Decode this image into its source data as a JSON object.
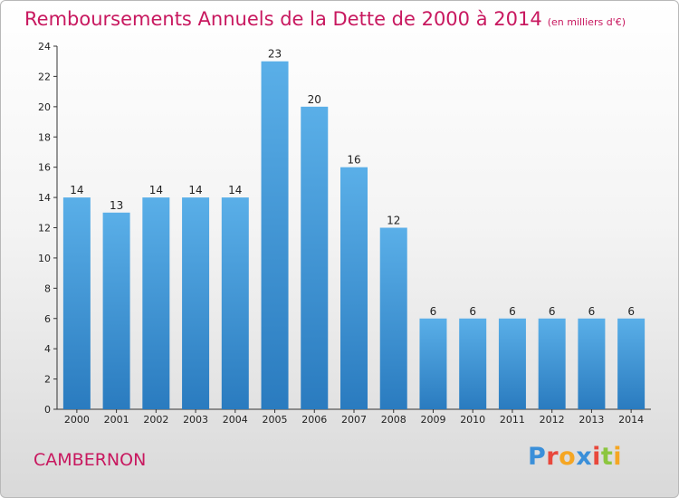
{
  "chart_data": {
    "type": "bar",
    "title": "Remboursements Annuels de la Dette de 2000 à 2014",
    "subtitle": "(en milliers d'€)",
    "categories": [
      "2000",
      "2001",
      "2002",
      "2003",
      "2004",
      "2005",
      "2006",
      "2007",
      "2008",
      "2009",
      "2010",
      "2011",
      "2012",
      "2013",
      "2014"
    ],
    "values": [
      14,
      13,
      14,
      14,
      14,
      23,
      20,
      16,
      12,
      6,
      6,
      6,
      6,
      6,
      6
    ],
    "ylim": [
      0,
      24
    ],
    "yticks": [
      0,
      2,
      4,
      6,
      8,
      10,
      12,
      14,
      16,
      18,
      20,
      22,
      24
    ],
    "xlabel": "",
    "ylabel": "",
    "grid": false,
    "colors": {
      "bar_top": "#5aafe8",
      "bar_bottom": "#2a7bbf",
      "title": "#c8185f"
    }
  },
  "commune_name": "CAMBERNON",
  "logo": {
    "letters": [
      "P",
      "r",
      "o",
      "x",
      "i",
      "t",
      "i"
    ],
    "colors": [
      "#3a8fd9",
      "#e8483c",
      "#f5a623",
      "#3a8fd9",
      "#e8483c",
      "#8cc63f",
      "#f5a623"
    ]
  }
}
